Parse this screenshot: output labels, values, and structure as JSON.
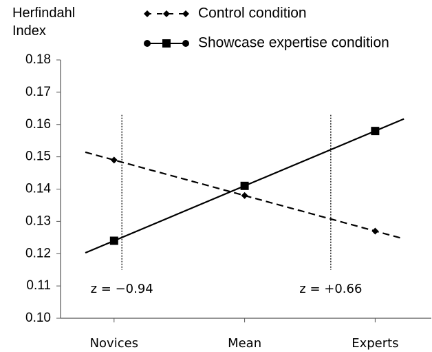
{
  "chart_data": {
    "type": "line",
    "ylabel": "Herfindahl Index",
    "xlim": [
      -1.41,
      1.43
    ],
    "xticks": [
      {
        "value": -1,
        "label": "Novices"
      },
      {
        "value": 0,
        "label": "Mean"
      },
      {
        "value": 1,
        "label": "Experts"
      }
    ],
    "ylim": [
      0.1,
      0.18
    ],
    "yticks": [
      {
        "value": 0.1,
        "label": "0.10"
      },
      0.11,
      0.12,
      0.13,
      0.14,
      0.15,
      0.16,
      0.17,
      0.18
    ],
    "x": [
      -1,
      0,
      1
    ],
    "series": [
      {
        "name": "Control condition",
        "color": "#000000",
        "dash": true,
        "marker": "diamond",
        "values": [
          0.149,
          0.138,
          0.127
        ]
      },
      {
        "name": "Showcase expertise condition",
        "color": "#000000",
        "dash": false,
        "marker": "square",
        "values": [
          0.124,
          0.141,
          0.158
        ]
      }
    ],
    "annotations": [
      {
        "text": "z = −0.94",
        "x": -0.94
      },
      {
        "text": "z = +0.66",
        "x": 0.66
      }
    ],
    "grid": false
  }
}
